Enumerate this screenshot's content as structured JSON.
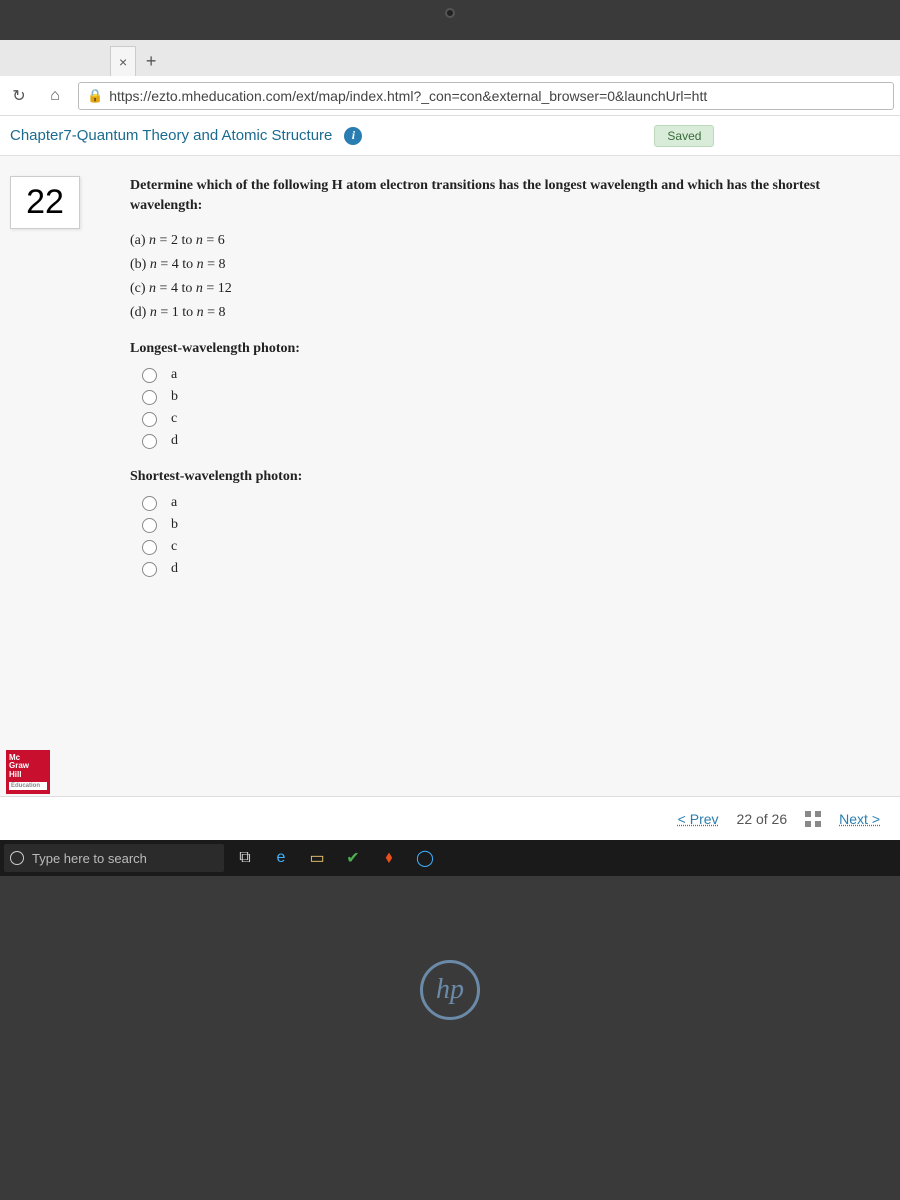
{
  "browser": {
    "tab_close": "×",
    "new_tab": "+",
    "url": "https://ezto.mheducation.com/ext/map/index.html?_con=con&external_browser=0&launchUrl=htt"
  },
  "header": {
    "title": "Chapter7-Quantum Theory and Atomic Structure",
    "saved": "Saved"
  },
  "question": {
    "number": "22",
    "prompt": "Determine which of the following H atom electron transitions has the longest wavelength and which has the shortest wavelength:",
    "options": [
      {
        "label": "(a)",
        "text": "n = 2 to n = 6"
      },
      {
        "label": "(b)",
        "text": "n = 4 to n = 8"
      },
      {
        "label": "(c)",
        "text": "n = 4 to n = 12"
      },
      {
        "label": "(d)",
        "text": "n = 1 to n = 8"
      }
    ],
    "longest_label": "Longest-wavelength photon:",
    "shortest_label": "Shortest-wavelength photon:",
    "choices": [
      "a",
      "b",
      "c",
      "d"
    ]
  },
  "logo": {
    "l1": "Mc",
    "l2": "Graw",
    "l3": "Hill",
    "l4": "Education"
  },
  "nav": {
    "prev": "< Prev",
    "position": "22 of 26",
    "next": "Next  >"
  },
  "taskbar": {
    "search_placeholder": "Type here to search"
  },
  "hp": "hp"
}
